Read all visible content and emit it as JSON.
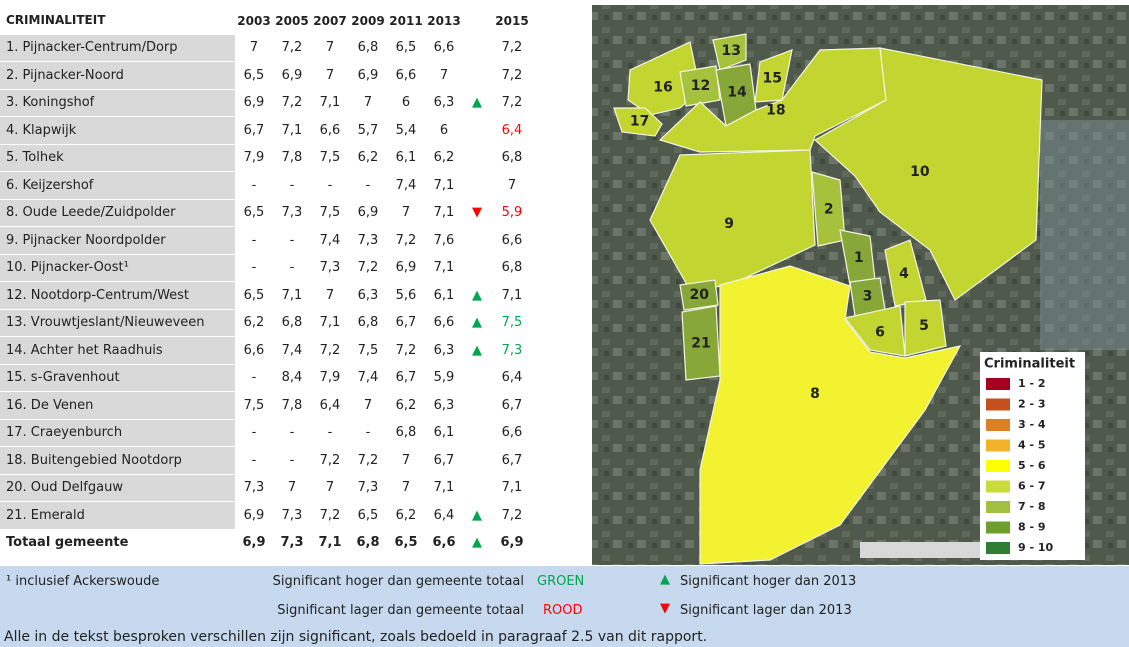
{
  "table": {
    "header": [
      "CRIMINALITEIT",
      "2003",
      "2005",
      "2007",
      "2009",
      "2011",
      "2013",
      "2015"
    ],
    "rows": [
      {
        "cells": [
          "1. Pijnacker-Centrum/Dorp",
          "7",
          "7,2",
          "7",
          "6,8",
          "6,5",
          "6,6",
          "7,2"
        ]
      },
      {
        "cells": [
          "2. Pijnacker-Noord",
          "6,5",
          "6,9",
          "7",
          "6,9",
          "6,6",
          "7",
          "7,2"
        ]
      },
      {
        "cells": [
          "3. Koningshof",
          "6,9",
          "7,2",
          "7,1",
          "7",
          "6",
          "6,3",
          "7,2"
        ],
        "trend": {
          "symbol": "▲",
          "color": "#00a650"
        }
      },
      {
        "cells": [
          "4. Klapwijk",
          "6,7",
          "7,1",
          "6,6",
          "5,7",
          "5,4",
          "6",
          "6,4"
        ],
        "color_2015": "#ff0000"
      },
      {
        "cells": [
          "5. Tolhek",
          "7,9",
          "7,8",
          "7,5",
          "6,2",
          "6,1",
          "6,2",
          "6,8"
        ]
      },
      {
        "cells": [
          "6. Keijzershof",
          "-",
          "-",
          "-",
          "-",
          "7,4",
          "7,1",
          "7"
        ]
      },
      {
        "cells": [
          "8. Oude Leede/Zuidpolder",
          "6,5",
          "7,3",
          "7,5",
          "6,9",
          "7",
          "7,1",
          "5,9"
        ],
        "trend": {
          "symbol": "▼",
          "color": "#ff0000"
        },
        "color_2015": "#ff0000"
      },
      {
        "cells": [
          "9. Pijnacker Noordpolder",
          "-",
          "-",
          "7,4",
          "7,3",
          "7,2",
          "7,6",
          "6,6"
        ]
      },
      {
        "cells": [
          "10. Pijnacker-Oost¹",
          "-",
          "-",
          "7,3",
          "7,2",
          "6,9",
          "7,1",
          "6,8"
        ]
      },
      {
        "cells": [
          "12. Nootdorp-Centrum/West",
          "6,5",
          "7,1",
          "7",
          "6,3",
          "5,6",
          "6,1",
          "7,1"
        ],
        "trend": {
          "symbol": "▲",
          "color": "#00a650"
        }
      },
      {
        "cells": [
          "13. Vrouwtjeslant/Nieuweveen",
          "6,2",
          "6,8",
          "7,1",
          "6,8",
          "6,7",
          "6,6",
          "7,5"
        ],
        "trend": {
          "symbol": "▲",
          "color": "#00a650"
        },
        "color_2015": "#00a650"
      },
      {
        "cells": [
          "14. Achter het Raadhuis",
          "6,6",
          "7,4",
          "7,2",
          "7,5",
          "7,2",
          "6,3",
          "7,3"
        ],
        "trend": {
          "symbol": "▲",
          "color": "#00a650"
        },
        "color_2015": "#00a650"
      },
      {
        "cells": [
          "15. s-Gravenhout",
          "-",
          "8,4",
          "7,9",
          "7,4",
          "6,7",
          "5,9",
          "6,4"
        ]
      },
      {
        "cells": [
          "16. De Venen",
          "7,5",
          "7,8",
          "6,4",
          "7",
          "6,2",
          "6,3",
          "6,7"
        ]
      },
      {
        "cells": [
          "17. Craeyenburch",
          "-",
          "-",
          "-",
          "-",
          "6,8",
          "6,1",
          "6,6"
        ]
      },
      {
        "cells": [
          "18. Buitengebied Nootdorp",
          "-",
          "-",
          "7,2",
          "7,2",
          "7",
          "6,7",
          "6,7"
        ]
      },
      {
        "cells": [
          "20. Oud Delfgauw",
          "7,3",
          "7",
          "7",
          "7,3",
          "7",
          "7,1",
          "7,1"
        ]
      },
      {
        "cells": [
          "21. Emerald",
          "6,9",
          "7,3",
          "7,2",
          "6,5",
          "6,2",
          "6,4",
          "7,2"
        ],
        "trend": {
          "symbol": "▲",
          "color": "#00a650"
        }
      },
      {
        "cells": [
          "Totaal gemeente",
          "6,9",
          "7,3",
          "7,1",
          "6,8",
          "6,5",
          "6,6",
          "6,9"
        ],
        "trend": {
          "symbol": "▲",
          "color": "#00a650"
        },
        "bold": true
      }
    ]
  },
  "map": {
    "areas": [
      {
        "label": "16",
        "color": "#c3d530"
      },
      {
        "label": "17",
        "color": "#c3d530"
      },
      {
        "label": "13",
        "color": "#a6c23c"
      },
      {
        "label": "12",
        "color": "#a6c23c"
      },
      {
        "label": "14",
        "color": "#87a838"
      },
      {
        "label": "15",
        "color": "#c3d530"
      },
      {
        "label": "18",
        "color": "#c3d530"
      },
      {
        "label": "10",
        "color": "#c3d530"
      },
      {
        "label": "9",
        "color": "#c3d530"
      },
      {
        "label": "2",
        "color": "#a6c23c"
      },
      {
        "label": "1",
        "color": "#87a838"
      },
      {
        "label": "3",
        "color": "#87a838"
      },
      {
        "label": "4",
        "color": "#c3d530"
      },
      {
        "label": "6",
        "color": "#c3d530"
      },
      {
        "label": "5",
        "color": "#c3d530"
      },
      {
        "label": "20",
        "color": "#87a838"
      },
      {
        "label": "21",
        "color": "#87a838"
      },
      {
        "label": "8",
        "color": "#f2f230"
      }
    ],
    "legend": {
      "title": "Criminaliteit",
      "items": [
        {
          "label": "1 - 2",
          "color": "#a50021"
        },
        {
          "label": "2 - 3",
          "color": "#c4501c"
        },
        {
          "label": "3 - 4",
          "color": "#dc8020"
        },
        {
          "label": "4 - 5",
          "color": "#f2b22a"
        },
        {
          "label": "5 - 6",
          "color": "#ffff00"
        },
        {
          "label": "6 - 7",
          "color": "#c8dc3c"
        },
        {
          "label": "7 - 8",
          "color": "#a2c040"
        },
        {
          "label": "8 - 9",
          "color": "#6e9e30"
        },
        {
          "label": "9 - 10",
          "color": "#2e7d32"
        }
      ]
    }
  },
  "footer": {
    "note": "¹ inclusief Ackerswoude",
    "higher_total": "Significant hoger dan gemeente totaal",
    "higher_total_word": "GROEN",
    "higher_total_color": "#00a650",
    "lower_total": "Significant lager dan gemeente totaal",
    "lower_total_word": "ROOD",
    "lower_total_color": "#ff0000",
    "higher_2013_symbol": "▲",
    "higher_2013": "Significant hoger dan 2013",
    "lower_2013_symbol": "▼",
    "lower_2013": "Significant lager dan 2013",
    "text": "Alle in de tekst besproken verschillen zijn significant, zoals bedoeld in paragraaf 2.5 van dit rapport."
  }
}
